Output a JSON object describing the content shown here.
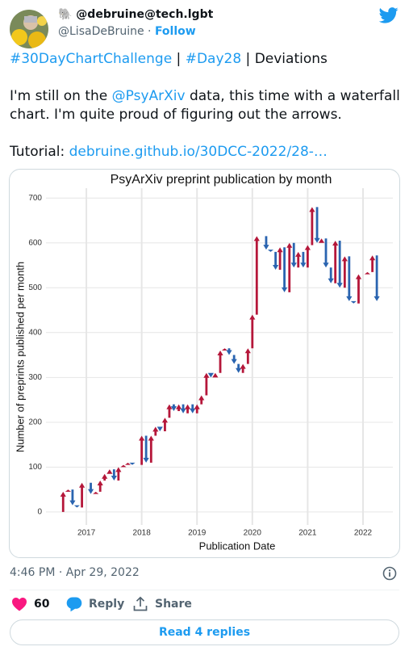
{
  "tweet": {
    "display_name": "🐘 @debruine@tech.lgbt",
    "handle": "@LisaDeBruine",
    "separator": "·",
    "follow": "Follow",
    "paragraphs": [
      [
        {
          "t": "#30DayChartChallenge",
          "link": true
        },
        {
          "t": " | ",
          "link": false
        },
        {
          "t": "#Day28",
          "link": true
        },
        {
          "t": " | Deviations",
          "link": false
        }
      ],
      [
        {
          "t": "I'm still on the ",
          "link": false
        },
        {
          "t": "@PsyArXiv",
          "link": true
        },
        {
          "t": " data, this time with a waterfall chart. I'm quite proud of figuring out the arrows.",
          "link": false
        }
      ],
      [
        {
          "t": "Tutorial: ",
          "link": false
        },
        {
          "t": "debruine.github.io/30DCC-2022/28-…",
          "link": true
        }
      ]
    ],
    "timestamp": "4:46 PM · Apr 29, 2022",
    "likes": 60,
    "reply": "Reply",
    "share": "Share",
    "read_replies": "Read 4 replies"
  },
  "chart_data": {
    "type": "waterfall",
    "title": "PsyArXiv preprint publication by month",
    "x_label": "Publication Date",
    "y_label": "Number of preprints published per month",
    "x": [
      2016.58,
      2016.67,
      2016.75,
      2016.83,
      2016.92,
      2017.0,
      2017.08,
      2017.17,
      2017.25,
      2017.33,
      2017.42,
      2017.5,
      2017.58,
      2017.67,
      2017.75,
      2017.83,
      2017.92,
      2018.0,
      2018.08,
      2018.17,
      2018.25,
      2018.33,
      2018.42,
      2018.5,
      2018.58,
      2018.67,
      2018.75,
      2018.83,
      2018.92,
      2019.0,
      2019.08,
      2019.17,
      2019.25,
      2019.33,
      2019.42,
      2019.5,
      2019.58,
      2019.67,
      2019.75,
      2019.83,
      2019.92,
      2020.0,
      2020.08,
      2020.17,
      2020.25,
      2020.33,
      2020.42,
      2020.5,
      2020.58,
      2020.67,
      2020.75,
      2020.83,
      2020.92,
      2021.0,
      2021.08,
      2021.17,
      2021.25,
      2021.33,
      2021.42,
      2021.5,
      2021.58,
      2021.67,
      2021.75,
      2021.83,
      2021.92,
      2022.0,
      2022.08,
      2022.17,
      2022.25
    ],
    "values": [
      45,
      50,
      15,
      10,
      65,
      65,
      40,
      45,
      70,
      85,
      95,
      70,
      100,
      105,
      110,
      105,
      105,
      170,
      110,
      170,
      190,
      180,
      210,
      240,
      225,
      240,
      220,
      240,
      220,
      240,
      260,
      310,
      300,
      310,
      360,
      365,
      350,
      330,
      310,
      330,
      365,
      440,
      615,
      615,
      585,
      580,
      540,
      590,
      490,
      600,
      545,
      580,
      545,
      595,
      680,
      600,
      610,
      545,
      510,
      605,
      500,
      570,
      470,
      465,
      530,
      530,
      535,
      572,
      470
    ],
    "up_color": "#b5173a",
    "down_color": "#2a64b0",
    "xlim": [
      2016.27,
      2022.54
    ],
    "xticks": [
      2017,
      2018,
      2019,
      2020,
      2021,
      2022
    ],
    "ylim": [
      -29,
      722
    ],
    "yticks": [
      0,
      100,
      200,
      300,
      400,
      500,
      600,
      700
    ],
    "grid": true
  }
}
